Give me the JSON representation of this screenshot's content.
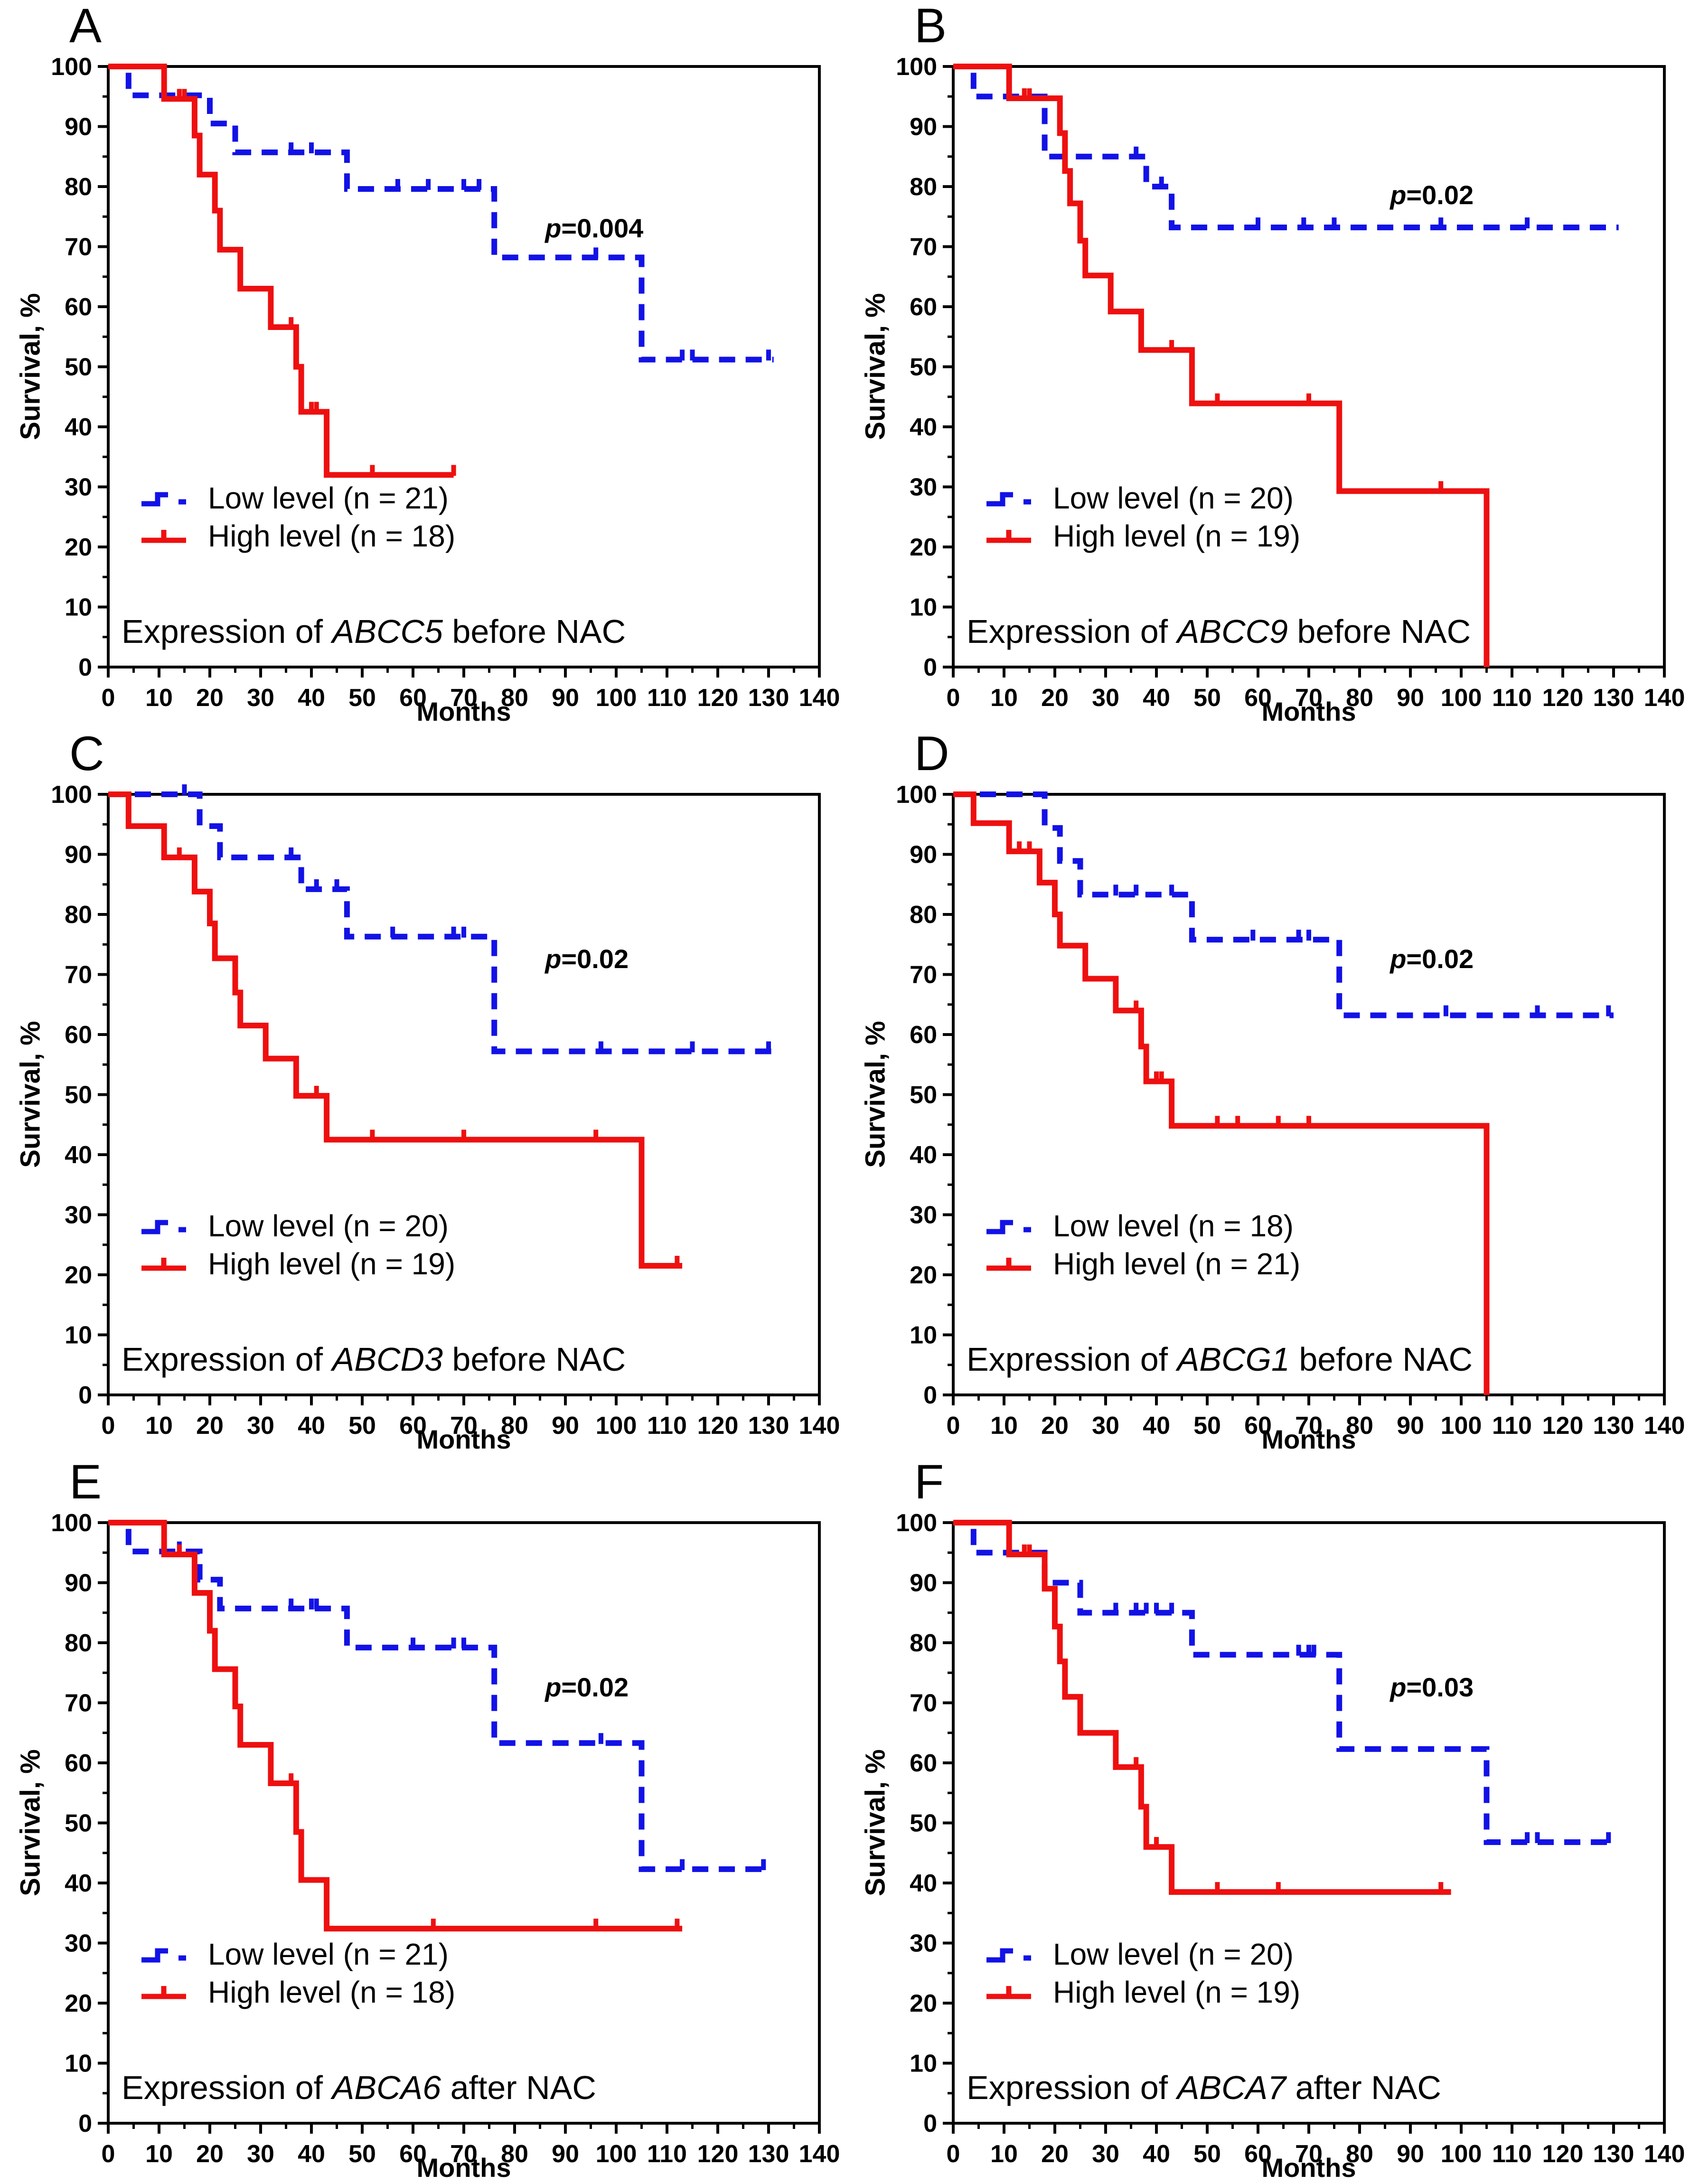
{
  "axes": {
    "xlabel": "Months",
    "ylabel": "Survival, %",
    "xlim": [
      0,
      140
    ],
    "ylim": [
      0,
      100
    ],
    "xtick_step": 10,
    "ytick_step": 10,
    "minor_step": 5,
    "grid": "off",
    "legend_position": "lower-left-inside"
  },
  "chart_data": [
    {
      "type": "line",
      "label": "A",
      "title": {
        "prefix": "Expression of ",
        "gene": "ABCC5",
        "suffix": " before NAC"
      },
      "p_label": {
        "sym": "p",
        "rest": "=0.004"
      },
      "p_xy": [
        86,
        73
      ],
      "series": [
        {
          "name": "Low level (n = 21)",
          "role": "low",
          "color": "#1212e6",
          "dashed": true,
          "end": 131,
          "steps": [
            [
              0,
              100
            ],
            [
              4,
              95.2
            ],
            [
              20,
              90.5
            ],
            [
              25,
              85.7
            ],
            [
              47,
              79.6
            ],
            [
              76,
              68.2
            ],
            [
              105,
              51.2
            ]
          ],
          "censors": [
            [
              36,
              85.7
            ],
            [
              40,
              85.7
            ],
            [
              57,
              79.6
            ],
            [
              63,
              79.6
            ],
            [
              70,
              79.6
            ],
            [
              73,
              79.6
            ],
            [
              96,
              68.2
            ],
            [
              113,
              51.2
            ],
            [
              115,
              51.2
            ],
            [
              130,
              51.2
            ]
          ]
        },
        {
          "name": "High level (n = 18)",
          "role": "high",
          "color": "#ee1010",
          "dashed": false,
          "end": 68,
          "steps": [
            [
              0,
              100
            ],
            [
              11,
              94.6
            ],
            [
              17,
              88.5
            ],
            [
              18,
              82
            ],
            [
              21,
              76
            ],
            [
              22,
              69.5
            ],
            [
              26,
              63
            ],
            [
              32,
              56.6
            ],
            [
              37,
              50
            ],
            [
              38,
              42.5
            ],
            [
              43,
              32
            ]
          ],
          "censors": [
            [
              14,
              94.6
            ],
            [
              15,
              94.6
            ],
            [
              36,
              56.6
            ],
            [
              40,
              42.5
            ],
            [
              41,
              42.5
            ],
            [
              52,
              32
            ],
            [
              68,
              32
            ]
          ]
        }
      ]
    },
    {
      "type": "line",
      "label": "B",
      "title": {
        "prefix": "Expression of ",
        "gene": "ABCC9",
        "suffix": " before NAC"
      },
      "p_label": {
        "sym": "p",
        "rest": "=0.02"
      },
      "p_xy": [
        86,
        78.5
      ],
      "series": [
        {
          "name": "Low level (n = 20)",
          "role": "low",
          "color": "#1212e6",
          "dashed": true,
          "end": 131,
          "steps": [
            [
              0,
              100
            ],
            [
              4,
              95
            ],
            [
              18,
              85
            ],
            [
              38,
              80
            ],
            [
              43,
              73.2
            ]
          ],
          "censors": [
            [
              36,
              85
            ],
            [
              41,
              80
            ],
            [
              60,
              73.2
            ],
            [
              69,
              73.2
            ],
            [
              75,
              73.2
            ],
            [
              96,
              73.2
            ],
            [
              113,
              73.2
            ]
          ]
        },
        {
          "name": "High level (n = 19)",
          "role": "high",
          "color": "#ee1010",
          "dashed": false,
          "end": 105,
          "steps": [
            [
              0,
              100
            ],
            [
              11,
              94.7
            ],
            [
              21,
              88.9
            ],
            [
              22,
              82.6
            ],
            [
              23,
              77.2
            ],
            [
              25,
              71
            ],
            [
              26,
              65.2
            ],
            [
              31,
              59.2
            ],
            [
              37,
              52.8
            ],
            [
              47,
              43.9
            ],
            [
              76,
              29.3
            ],
            [
              105,
              0
            ]
          ],
          "censors": [
            [
              14,
              94.7
            ],
            [
              15,
              94.7
            ],
            [
              43,
              52.8
            ],
            [
              52,
              43.9
            ],
            [
              70,
              43.9
            ],
            [
              96,
              29.3
            ]
          ]
        }
      ]
    },
    {
      "type": "line",
      "label": "C",
      "title": {
        "prefix": "Expression of ",
        "gene": "ABCD3",
        "suffix": " before NAC"
      },
      "p_label": {
        "sym": "p",
        "rest": "=0.02"
      },
      "p_xy": [
        86,
        72.5
      ],
      "series": [
        {
          "name": "Low level (n = 20)",
          "role": "low",
          "color": "#1212e6",
          "dashed": true,
          "end": 131,
          "steps": [
            [
              0,
              100
            ],
            [
              18,
              94.7
            ],
            [
              22,
              89.5
            ],
            [
              38,
              84.2
            ],
            [
              47,
              76.3
            ],
            [
              76,
              57.2
            ]
          ],
          "censors": [
            [
              15,
              100
            ],
            [
              36,
              89.5
            ],
            [
              41,
              84.2
            ],
            [
              45,
              84.2
            ],
            [
              56,
              76.3
            ],
            [
              68,
              76.3
            ],
            [
              70,
              76.3
            ],
            [
              97,
              57.2
            ],
            [
              115,
              57.2
            ],
            [
              130,
              57.2
            ]
          ]
        },
        {
          "name": "High level (n = 19)",
          "role": "high",
          "color": "#ee1010",
          "dashed": false,
          "end": 113,
          "steps": [
            [
              0,
              100
            ],
            [
              4,
              94.7
            ],
            [
              11,
              89.5
            ],
            [
              17,
              83.8
            ],
            [
              20,
              78.5
            ],
            [
              21,
              72.7
            ],
            [
              25,
              67
            ],
            [
              26,
              61.5
            ],
            [
              31,
              56
            ],
            [
              37,
              49.8
            ],
            [
              43,
              42.5
            ],
            [
              105,
              21.5
            ]
          ],
          "censors": [
            [
              14,
              89.5
            ],
            [
              41,
              49.8
            ],
            [
              52,
              42.5
            ],
            [
              70,
              42.5
            ],
            [
              96,
              42.5
            ],
            [
              112,
              21.5
            ]
          ]
        }
      ]
    },
    {
      "type": "line",
      "label": "D",
      "title": {
        "prefix": "Expression of ",
        "gene": "ABCG1",
        "suffix": " before NAC"
      },
      "p_label": {
        "sym": "p",
        "rest": "=0.02"
      },
      "p_xy": [
        86,
        72.5
      ],
      "series": [
        {
          "name": "Low level (n = 18)",
          "role": "low",
          "color": "#1212e6",
          "dashed": true,
          "end": 130,
          "steps": [
            [
              0,
              100
            ],
            [
              18,
              94.4
            ],
            [
              21,
              88.9
            ],
            [
              25,
              83.3
            ],
            [
              47,
              75.8
            ],
            [
              76,
              63.2
            ]
          ],
          "censors": [
            [
              32,
              83.3
            ],
            [
              36,
              83.3
            ],
            [
              43,
              83.3
            ],
            [
              59,
              75.8
            ],
            [
              68,
              75.8
            ],
            [
              70,
              75.8
            ],
            [
              97,
              63.2
            ],
            [
              115,
              63.2
            ],
            [
              129,
              63.2
            ]
          ]
        },
        {
          "name": "High level (n = 21)",
          "role": "high",
          "color": "#ee1010",
          "dashed": false,
          "end": 105,
          "steps": [
            [
              0,
              100
            ],
            [
              4,
              95.2
            ],
            [
              11,
              90.5
            ],
            [
              17,
              85.3
            ],
            [
              20,
              80
            ],
            [
              21,
              74.8
            ],
            [
              26,
              69.3
            ],
            [
              32,
              64
            ],
            [
              37,
              58
            ],
            [
              38,
              52.2
            ],
            [
              43,
              44.8
            ],
            [
              105,
              0
            ]
          ],
          "censors": [
            [
              13,
              90.5
            ],
            [
              15,
              90.5
            ],
            [
              36,
              64
            ],
            [
              40,
              52.2
            ],
            [
              41,
              52.2
            ],
            [
              52,
              44.8
            ],
            [
              56,
              44.8
            ],
            [
              64,
              44.8
            ],
            [
              70,
              44.8
            ]
          ]
        }
      ]
    },
    {
      "type": "line",
      "label": "E",
      "title": {
        "prefix": "Expression of ",
        "gene": "ABCA6",
        "suffix": " after NAC"
      },
      "p_label": {
        "sym": "p",
        "rest": "=0.02"
      },
      "p_xy": [
        86,
        72.5
      ],
      "series": [
        {
          "name": "Low level (n = 21)",
          "role": "low",
          "color": "#1212e6",
          "dashed": true,
          "end": 130,
          "steps": [
            [
              0,
              100
            ],
            [
              4,
              95.2
            ],
            [
              18,
              90.5
            ],
            [
              22,
              85.7
            ],
            [
              47,
              79.2
            ],
            [
              76,
              63.3
            ],
            [
              105,
              42.3
            ]
          ],
          "censors": [
            [
              14,
              95.2
            ],
            [
              36,
              85.7
            ],
            [
              40,
              85.7
            ],
            [
              41,
              85.7
            ],
            [
              60,
              79.2
            ],
            [
              68,
              79.2
            ],
            [
              70,
              79.2
            ],
            [
              97,
              63.3
            ],
            [
              113,
              42.3
            ],
            [
              129,
              42.3
            ]
          ]
        },
        {
          "name": "High level (n = 18)",
          "role": "high",
          "color": "#ee1010",
          "dashed": false,
          "end": 113,
          "steps": [
            [
              0,
              100
            ],
            [
              11,
              94.7
            ],
            [
              17,
              88.3
            ],
            [
              20,
              82
            ],
            [
              21,
              75.6
            ],
            [
              25,
              69.4
            ],
            [
              26,
              63
            ],
            [
              32,
              56.6
            ],
            [
              37,
              48.5
            ],
            [
              38,
              40.5
            ],
            [
              43,
              32.4
            ]
          ],
          "censors": [
            [
              14,
              94.7
            ],
            [
              36,
              56.6
            ],
            [
              64,
              32.4
            ],
            [
              96,
              32.4
            ],
            [
              112,
              32.4
            ]
          ]
        }
      ]
    },
    {
      "type": "line",
      "label": "F",
      "title": {
        "prefix": "Expression of ",
        "gene": "ABCA7",
        "suffix": " after NAC"
      },
      "p_label": {
        "sym": "p",
        "rest": "=0.03"
      },
      "p_xy": [
        86,
        72.5
      ],
      "series": [
        {
          "name": "Low level (n = 20)",
          "role": "low",
          "color": "#1212e6",
          "dashed": true,
          "end": 130,
          "steps": [
            [
              0,
              100
            ],
            [
              4,
              95
            ],
            [
              18,
              90
            ],
            [
              25,
              85
            ],
            [
              47,
              78
            ],
            [
              76,
              62.3
            ],
            [
              105,
              46.8
            ]
          ],
          "censors": [
            [
              32,
              85
            ],
            [
              36,
              85
            ],
            [
              38,
              85
            ],
            [
              40,
              85
            ],
            [
              43,
              85
            ],
            [
              68,
              78
            ],
            [
              70,
              78
            ],
            [
              71,
              78
            ],
            [
              113,
              46.8
            ],
            [
              115,
              46.8
            ],
            [
              129,
              46.8
            ]
          ]
        },
        {
          "name": "High level (n = 19)",
          "role": "high",
          "color": "#ee1010",
          "dashed": false,
          "end": 98,
          "steps": [
            [
              0,
              100
            ],
            [
              11,
              94.7
            ],
            [
              18,
              89
            ],
            [
              20,
              82.7
            ],
            [
              21,
              76.9
            ],
            [
              22,
              71
            ],
            [
              25,
              65
            ],
            [
              32,
              59.3
            ],
            [
              37,
              52.7
            ],
            [
              38,
              46
            ],
            [
              43,
              38.5
            ]
          ],
          "censors": [
            [
              14,
              94.7
            ],
            [
              15,
              94.7
            ],
            [
              36,
              59.3
            ],
            [
              40,
              46
            ],
            [
              52,
              38.5
            ],
            [
              64,
              38.5
            ],
            [
              96,
              38.5
            ]
          ]
        }
      ]
    }
  ]
}
